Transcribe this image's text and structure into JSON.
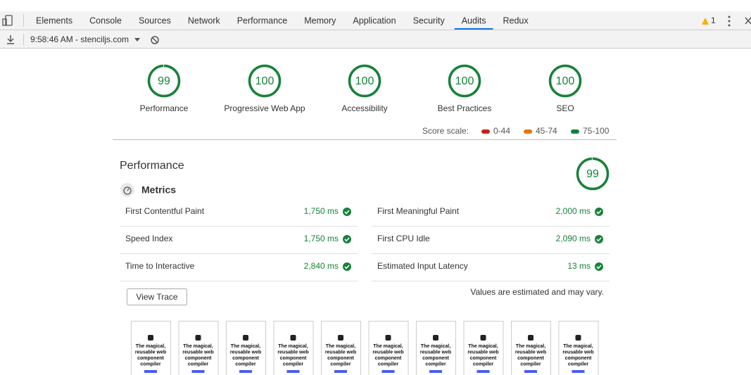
{
  "tabs": [
    {
      "label": "Elements"
    },
    {
      "label": "Console"
    },
    {
      "label": "Sources"
    },
    {
      "label": "Network"
    },
    {
      "label": "Performance"
    },
    {
      "label": "Memory"
    },
    {
      "label": "Application"
    },
    {
      "label": "Security"
    },
    {
      "label": "Audits",
      "active": true
    },
    {
      "label": "Redux"
    }
  ],
  "warning_count": "1",
  "toolbar": {
    "session": "9:58:46 AM - stenciljs.com"
  },
  "gauges": [
    {
      "score": 99,
      "label": "Performance"
    },
    {
      "score": 100,
      "label": "Progressive Web App"
    },
    {
      "score": 100,
      "label": "Accessibility"
    },
    {
      "score": 100,
      "label": "Best Practices"
    },
    {
      "score": 100,
      "label": "SEO"
    }
  ],
  "score_scale": {
    "label": "Score scale:",
    "ranges": [
      {
        "label": "0-44",
        "color": "#c7221f"
      },
      {
        "label": "45-74",
        "color": "#e67700"
      },
      {
        "label": "75-100",
        "color": "#178239"
      }
    ]
  },
  "performance": {
    "title": "Performance",
    "score": 99,
    "metrics_title": "Metrics",
    "metrics": [
      {
        "name": "First Contentful Paint",
        "value": "1,750 ms"
      },
      {
        "name": "First Meaningful Paint",
        "value": "2,000 ms"
      },
      {
        "name": "Speed Index",
        "value": "1,750 ms"
      },
      {
        "name": "First CPU Idle",
        "value": "2,090 ms"
      },
      {
        "name": "Time to Interactive",
        "value": "2,840 ms"
      },
      {
        "name": "Estimated Input Latency",
        "value": "13 ms"
      }
    ],
    "button": "View Trace",
    "note": "Values are estimated and may vary."
  },
  "filmstrip": {
    "frames": [
      {
        "text": "The magical, reusable web component compiler"
      },
      {
        "text": "The magical, reusable web component compiler"
      },
      {
        "text": "The magical, reusable web component compiler"
      },
      {
        "text": "The magical, reusable web component compiler"
      },
      {
        "text": "The magical, reusable web component compiler"
      },
      {
        "text": "The magical, reusable web component compiler"
      },
      {
        "text": "The magical, reusable web component compiler"
      },
      {
        "text": "The magical, reusable web component compiler"
      },
      {
        "text": "The magical, reusable web component compiler"
      },
      {
        "text": "The magical, reusable web component compiler"
      }
    ]
  }
}
